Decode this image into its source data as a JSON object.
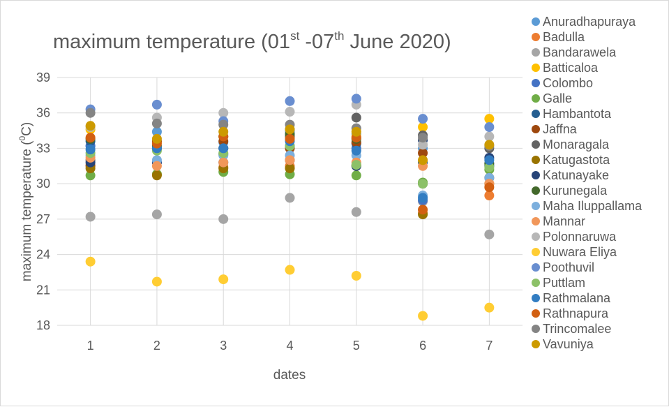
{
  "chart_data": {
    "type": "scatter",
    "title": "maximum temperature (01st -07th June 2020)",
    "title_parts": {
      "prefix": "maximum temperature (01",
      "sup1": "st",
      "middle": " -07",
      "sup2": "th",
      "suffix": " June 2020)"
    },
    "xlabel": "dates",
    "ylabel": "maximum temperature (0C)",
    "ylabel_parts": {
      "prefix": "maximum temperature (",
      "sup": "0",
      "suffix": "C)"
    },
    "x": [
      1,
      2,
      3,
      4,
      5,
      6,
      7
    ],
    "x_ticks": [
      "1",
      "2",
      "3",
      "4",
      "5",
      "6",
      "7"
    ],
    "xlim": [
      0.5,
      7.5
    ],
    "ylim": [
      18,
      39
    ],
    "y_ticks": [
      "18",
      "21",
      "24",
      "27",
      "30",
      "33",
      "36",
      "39"
    ],
    "grid": true,
    "legend_position": "right",
    "series": [
      {
        "name": "Anuradhapuraya",
        "color": "#5B9BD5",
        "values": [
          33.2,
          34.4,
          33.5,
          34.4,
          34.2,
          33.0,
          31.5
        ]
      },
      {
        "name": "Badulla",
        "color": "#ED7D31",
        "values": [
          31.6,
          30.8,
          31.4,
          31.5,
          31.6,
          27.5,
          29.0
        ]
      },
      {
        "name": "Bandarawela",
        "color": "#A5A5A5",
        "values": [
          27.2,
          27.4,
          27.0,
          28.8,
          27.6,
          28.5,
          25.7
        ]
      },
      {
        "name": "Batticaloa",
        "color": "#FFC000",
        "values": [
          34.6,
          33.5,
          34.0,
          34.0,
          34.0,
          34.8,
          35.5
        ]
      },
      {
        "name": "Colombo",
        "color": "#4472C4",
        "values": [
          33.2,
          31.8,
          33.0,
          34.6,
          33.0,
          28.6,
          31.7
        ]
      },
      {
        "name": "Galle",
        "color": "#70AD47",
        "values": [
          30.7,
          30.8,
          31.0,
          30.8,
          30.7,
          30.1,
          31.2
        ]
      },
      {
        "name": "Hambantota",
        "color": "#255E91",
        "values": [
          33.6,
          33.0,
          32.5,
          33.2,
          33.4,
          31.8,
          31.5
        ]
      },
      {
        "name": "Jaffna",
        "color": "#9E480E",
        "values": [
          31.5,
          33.6,
          33.6,
          33.0,
          33.5,
          32.6,
          30.5
        ]
      },
      {
        "name": "Monaragala",
        "color": "#636363",
        "values": [
          32.0,
          33.0,
          33.0,
          34.0,
          35.6,
          34.1,
          33.0
        ]
      },
      {
        "name": "Katugastota",
        "color": "#997300",
        "values": [
          31.3,
          30.7,
          31.3,
          31.3,
          31.5,
          27.4,
          30.0
        ]
      },
      {
        "name": "Katunayake",
        "color": "#264478",
        "values": [
          31.8,
          31.8,
          31.8,
          32.0,
          31.5,
          33.7,
          32.2
        ]
      },
      {
        "name": "Kurunegala",
        "color": "#43682B",
        "values": [
          33.8,
          33.2,
          34.0,
          34.2,
          33.8,
          30.0,
          31.7
        ]
      },
      {
        "name": "Maha Iluppallama",
        "color": "#7CAFDD",
        "values": [
          32.4,
          32.0,
          32.4,
          32.4,
          32.4,
          29.0,
          30.5
        ]
      },
      {
        "name": "Mannar",
        "color": "#F1975A",
        "values": [
          32.2,
          31.5,
          31.8,
          32.0,
          31.8,
          31.5,
          30.0
        ]
      },
      {
        "name": "Polonnaruwa",
        "color": "#B7B7B7",
        "values": [
          34.8,
          35.6,
          36.0,
          36.1,
          36.7,
          33.3,
          34.0
        ]
      },
      {
        "name": "Nuwara Eliya",
        "color": "#FFCD33",
        "values": [
          23.4,
          21.7,
          21.9,
          22.7,
          22.2,
          18.8,
          19.5
        ]
      },
      {
        "name": "Poothuvil",
        "color": "#698ED0",
        "values": [
          36.3,
          36.7,
          35.3,
          37.0,
          37.2,
          35.5,
          34.8
        ]
      },
      {
        "name": "Puttlam",
        "color": "#8CC168",
        "values": [
          32.6,
          32.8,
          32.6,
          33.2,
          31.6,
          30.0,
          31.4
        ]
      },
      {
        "name": "Rathmalana",
        "color": "#327DC2",
        "values": [
          32.9,
          33.0,
          33.0,
          33.6,
          32.8,
          28.8,
          32.0
        ]
      },
      {
        "name": "Rathnapura",
        "color": "#D26012",
        "values": [
          33.9,
          33.4,
          34.0,
          33.8,
          33.9,
          27.8,
          29.7
        ]
      },
      {
        "name": "Trincomalee",
        "color": "#848484",
        "values": [
          36.0,
          35.1,
          35.0,
          35.0,
          34.7,
          33.9,
          33.2
        ]
      },
      {
        "name": "Vavuniya",
        "color": "#CC9A00",
        "values": [
          34.9,
          33.8,
          34.4,
          34.6,
          34.4,
          32.0,
          33.3
        ]
      }
    ]
  }
}
